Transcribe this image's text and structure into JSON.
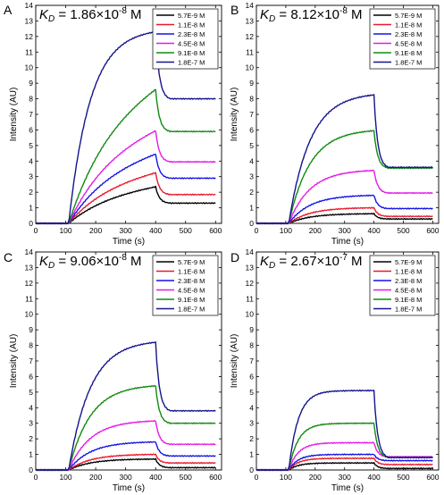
{
  "chart_data": [
    {
      "panel": "A",
      "type": "line",
      "kd": {
        "symbol": "K",
        "subscript": "D",
        "value": " = 1.86×10",
        "exponent": "-8",
        "unit": " M"
      },
      "xlabel": "Time (s)",
      "ylabel": "Intensity (AU)",
      "xlim": [
        0,
        620
      ],
      "ylim": [
        0,
        14
      ],
      "xticks": [
        0,
        100,
        200,
        300,
        400,
        500,
        600
      ],
      "yticks": [
        0,
        1,
        2,
        3,
        4,
        5,
        6,
        7,
        8,
        9,
        10,
        11,
        12,
        13,
        14
      ],
      "legend_position": "top-right",
      "series": [
        {
          "name": "5.7E-9 M",
          "color": "#000000",
          "plateau": 2.35,
          "final": 1.3,
          "shape": "linear"
        },
        {
          "name": "1.1E-8 M",
          "color": "#e8192c",
          "plateau": 3.25,
          "final": 1.85,
          "shape": "linear"
        },
        {
          "name": "2.3E-8 M",
          "color": "#1414e6",
          "plateau": 4.45,
          "final": 2.9,
          "shape": "linear"
        },
        {
          "name": "4.5E-8 M",
          "color": "#e619e6",
          "plateau": 5.95,
          "final": 3.95,
          "shape": "linear"
        },
        {
          "name": "9.1E-8 M",
          "color": "#128a12",
          "plateau": 8.6,
          "final": 5.9,
          "shape": "linear"
        },
        {
          "name": "1.8E-7 M",
          "color": "#14148c",
          "plateau": 12.3,
          "final": 8.0,
          "shape": "curved"
        }
      ]
    },
    {
      "panel": "B",
      "type": "line",
      "kd": {
        "symbol": "K",
        "subscript": "D",
        "value": " = 8.12×10",
        "exponent": "-8",
        "unit": " M"
      },
      "xlabel": "Time (s)",
      "ylabel": "Intensity (AU)",
      "xlim": [
        0,
        620
      ],
      "ylim": [
        0,
        14
      ],
      "xticks": [
        0,
        100,
        200,
        300,
        400,
        500,
        600
      ],
      "yticks": [
        0,
        1,
        2,
        3,
        4,
        5,
        6,
        7,
        8,
        9,
        10,
        11,
        12,
        13,
        14
      ],
      "legend_position": "top-right",
      "series": [
        {
          "name": "5.7E-9 M",
          "color": "#000000",
          "plateau": 0.62,
          "final": 0.28,
          "shape": "curved"
        },
        {
          "name": "1.1E-8 M",
          "color": "#e8192c",
          "plateau": 1.0,
          "final": 0.45,
          "shape": "curved"
        },
        {
          "name": "2.3E-8 M",
          "color": "#1414e6",
          "plateau": 1.8,
          "final": 0.95,
          "shape": "curved"
        },
        {
          "name": "4.5E-8 M",
          "color": "#e619e6",
          "plateau": 3.4,
          "final": 1.95,
          "shape": "curved"
        },
        {
          "name": "9.1E-8 M",
          "color": "#128a12",
          "plateau": 5.95,
          "final": 3.55,
          "shape": "curved"
        },
        {
          "name": "1.8E-7 M",
          "color": "#14148c",
          "plateau": 8.25,
          "final": 3.6,
          "shape": "curved"
        }
      ]
    },
    {
      "panel": "C",
      "type": "line",
      "kd": {
        "symbol": "K",
        "subscript": "D",
        "value": " = 9.06×10",
        "exponent": "-8",
        "unit": " M"
      },
      "xlabel": "Time (s)",
      "ylabel": "Intensity (AU)",
      "xlim": [
        0,
        620
      ],
      "ylim": [
        0,
        14
      ],
      "xticks": [
        0,
        100,
        200,
        300,
        400,
        500,
        600
      ],
      "yticks": [
        0,
        1,
        2,
        3,
        4,
        5,
        6,
        7,
        8,
        9,
        10,
        11,
        12,
        13,
        14
      ],
      "legend_position": "top-right",
      "series": [
        {
          "name": "5.7E-9 M",
          "color": "#000000",
          "plateau": 0.7,
          "final": 0.15,
          "shape": "curved"
        },
        {
          "name": "1.1E-8 M",
          "color": "#e8192c",
          "plateau": 1.0,
          "final": 0.45,
          "shape": "curved"
        },
        {
          "name": "2.3E-8 M",
          "color": "#1414e6",
          "plateau": 1.8,
          "final": 0.9,
          "shape": "curved"
        },
        {
          "name": "4.5E-8 M",
          "color": "#e619e6",
          "plateau": 3.15,
          "final": 1.65,
          "shape": "curved"
        },
        {
          "name": "9.1E-8 M",
          "color": "#128a12",
          "plateau": 5.4,
          "final": 3.0,
          "shape": "curved"
        },
        {
          "name": "1.8E-7 M",
          "color": "#14148c",
          "plateau": 8.2,
          "final": 3.8,
          "shape": "curved"
        }
      ]
    },
    {
      "panel": "D",
      "type": "line",
      "kd": {
        "symbol": "K",
        "subscript": "D",
        "value": " = 2.67×10",
        "exponent": "-7",
        "unit": " M"
      },
      "xlabel": "Time (s)",
      "ylabel": "Intensity (AU)",
      "xlim": [
        0,
        620
      ],
      "ylim": [
        0,
        14
      ],
      "xticks": [
        0,
        100,
        200,
        300,
        400,
        500,
        600
      ],
      "yticks": [
        0,
        1,
        2,
        3,
        4,
        5,
        6,
        7,
        8,
        9,
        10,
        11,
        12,
        13,
        14
      ],
      "legend_position": "top-right",
      "series": [
        {
          "name": "5.7E-9 M",
          "color": "#000000",
          "plateau": 0.45,
          "final": 0.1,
          "shape": "fast"
        },
        {
          "name": "1.1E-8 M",
          "color": "#e8192c",
          "plateau": 0.75,
          "final": 0.35,
          "shape": "fast"
        },
        {
          "name": "2.3E-8 M",
          "color": "#1414e6",
          "plateau": 1.0,
          "final": 0.6,
          "shape": "fast"
        },
        {
          "name": "4.5E-8 M",
          "color": "#e619e6",
          "plateau": 1.75,
          "final": 0.85,
          "shape": "fast"
        },
        {
          "name": "9.1E-8 M",
          "color": "#128a12",
          "plateau": 3.0,
          "final": 0.8,
          "shape": "fast"
        },
        {
          "name": "1.8E-7 M",
          "color": "#14148c",
          "plateau": 5.1,
          "final": 0.8,
          "shape": "fast"
        }
      ]
    }
  ]
}
